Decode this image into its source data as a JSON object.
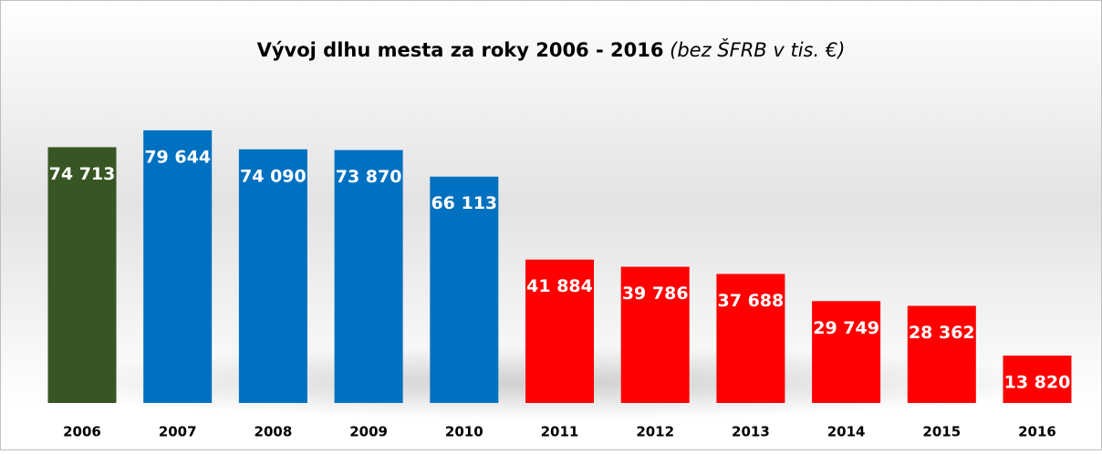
{
  "chart_data": {
    "type": "bar",
    "title": "Vývoj dlhu mesta za roky 2006 - 2016",
    "title_note": "(bez ŠFRB v tis. €)",
    "categories": [
      "2006",
      "2007",
      "2008",
      "2009",
      "2010",
      "2011",
      "2012",
      "2013",
      "2014",
      "2015",
      "2016"
    ],
    "values": [
      74713,
      79644,
      74090,
      73870,
      66113,
      41884,
      39786,
      37688,
      29749,
      28362,
      13820
    ],
    "value_labels": [
      "74 713",
      "79 644",
      "74 090",
      "73 870",
      "66 113",
      "41 884",
      "39 786",
      "37 688",
      "29 749",
      "28 362",
      "13 820"
    ],
    "colors": [
      "#375623",
      "#0070c0",
      "#0070c0",
      "#0070c0",
      "#0070c0",
      "#ff0000",
      "#ff0000",
      "#ff0000",
      "#ff0000",
      "#ff0000",
      "#ff0000"
    ],
    "ylim": [
      0,
      80000
    ]
  }
}
